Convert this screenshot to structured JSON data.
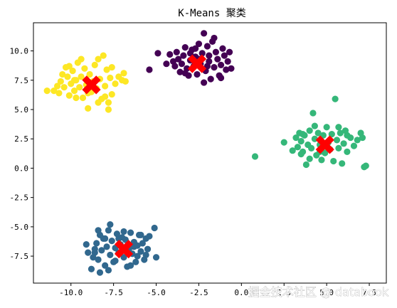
{
  "chart_data": {
    "type": "scatter",
    "title": "K-Means 聚类",
    "xlabel": "",
    "ylabel": "",
    "xlim": [
      -12.2,
      8.5
    ],
    "ylim": [
      -9.8,
      12.4
    ],
    "xticks": [
      -10.0,
      -7.5,
      -5.0,
      -2.5,
      0.0,
      2.5,
      5.0,
      7.5
    ],
    "xtick_labels": [
      "-10.0",
      "-7.5",
      "-5.0",
      "-2.5",
      "0.0",
      "2.5",
      "5.0",
      "7.5"
    ],
    "yticks": [
      -7.5,
      -5.0,
      -2.5,
      0.0,
      2.5,
      5.0,
      7.5,
      10.0
    ],
    "ytick_labels": [
      "-7.5",
      "-5.0",
      "-2.5",
      "0.0",
      "2.5",
      "5.0",
      "7.5",
      "10.0"
    ],
    "grid": false,
    "series": [
      {
        "color": "#440154",
        "points": [
          [
            -4.9,
            9.8
          ],
          [
            -5.4,
            8.4
          ],
          [
            -4.2,
            9.7
          ],
          [
            -4.0,
            9.1
          ],
          [
            -3.9,
            8.7
          ],
          [
            -3.7,
            9.3
          ],
          [
            -3.6,
            8.2
          ],
          [
            -3.5,
            8.9
          ],
          [
            -3.4,
            9.6
          ],
          [
            -3.3,
            10.3
          ],
          [
            -3.2,
            8.5
          ],
          [
            -3.1,
            7.9
          ],
          [
            -3.0,
            9.2
          ],
          [
            -2.9,
            10.1
          ],
          [
            -2.8,
            8.7
          ],
          [
            -2.7,
            9.5
          ],
          [
            -2.6,
            8.0
          ],
          [
            -2.5,
            10.6
          ],
          [
            -2.4,
            8.9
          ],
          [
            -2.3,
            9.8
          ],
          [
            -2.2,
            11.5
          ],
          [
            -2.1,
            8.3
          ],
          [
            -2.0,
            10.4
          ],
          [
            -1.9,
            9.1
          ],
          [
            -1.8,
            7.6
          ],
          [
            -1.7,
            10.8
          ],
          [
            -1.6,
            8.6
          ],
          [
            -1.5,
            9.9
          ],
          [
            -1.4,
            9.3
          ],
          [
            -1.3,
            7.9
          ],
          [
            -1.2,
            8.8
          ],
          [
            -1.1,
            10.2
          ],
          [
            -0.9,
            8.4
          ],
          [
            -0.8,
            9.1
          ],
          [
            -0.7,
            9.9
          ],
          [
            -3.8,
            9.9
          ],
          [
            -3.3,
            8.1
          ],
          [
            -2.7,
            10.2
          ],
          [
            -2.0,
            8.7
          ],
          [
            -1.6,
            11.1
          ],
          [
            -1.2,
            7.7
          ],
          [
            -0.6,
            8.5
          ],
          [
            -3.0,
            9.8
          ],
          [
            -2.5,
            9.3
          ],
          [
            -1.9,
            9.6
          ],
          [
            -4.4,
            8.9
          ],
          [
            -2.2,
            7.3
          ],
          [
            -1.0,
            9.6
          ]
        ]
      },
      {
        "color": "#31688e",
        "points": [
          [
            -8.6,
            -7.2
          ],
          [
            -8.5,
            -6.4
          ],
          [
            -8.4,
            -7.8
          ],
          [
            -8.3,
            -5.7
          ],
          [
            -8.2,
            -7.0
          ],
          [
            -8.1,
            -6.0
          ],
          [
            -8.0,
            -8.3
          ],
          [
            -7.9,
            -6.7
          ],
          [
            -7.8,
            -5.3
          ],
          [
            -7.7,
            -7.4
          ],
          [
            -7.6,
            -6.2
          ],
          [
            -7.5,
            -8.0
          ],
          [
            -7.4,
            -6.8
          ],
          [
            -7.3,
            -5.6
          ],
          [
            -7.2,
            -7.2
          ],
          [
            -7.1,
            -6.5
          ],
          [
            -7.0,
            -5.9
          ],
          [
            -6.9,
            -7.6
          ],
          [
            -6.8,
            -6.1
          ],
          [
            -6.7,
            -8.4
          ],
          [
            -6.6,
            -6.9
          ],
          [
            -6.5,
            -5.5
          ],
          [
            -6.4,
            -7.3
          ],
          [
            -6.3,
            -6.3
          ],
          [
            -6.2,
            -8.0
          ],
          [
            -6.1,
            -6.6
          ],
          [
            -6.0,
            -5.7
          ],
          [
            -5.9,
            -7.1
          ],
          [
            -5.8,
            -6.4
          ],
          [
            -5.7,
            -7.8
          ],
          [
            -5.6,
            -6.0
          ],
          [
            -5.5,
            -6.9
          ],
          [
            -5.4,
            -5.8
          ],
          [
            -5.1,
            -5.1
          ],
          [
            -5.0,
            -7.6
          ],
          [
            -7.7,
            -4.8
          ],
          [
            -8.3,
            -8.9
          ],
          [
            -8.6,
            -6.9
          ],
          [
            -8.7,
            -7.6
          ],
          [
            -8.8,
            -8.6
          ],
          [
            -8.4,
            -5.3
          ],
          [
            -7.8,
            -8.7
          ],
          [
            -7.2,
            -6.0
          ],
          [
            -6.9,
            -5.4
          ],
          [
            -6.5,
            -8.3
          ],
          [
            -6.3,
            -6.7
          ],
          [
            -5.9,
            -5.7
          ],
          [
            -5.6,
            -7.4
          ],
          [
            -6.1,
            -7.5
          ],
          [
            -7.4,
            -7.9
          ],
          [
            -8.0,
            -6.0
          ],
          [
            -9.0,
            -7.2
          ],
          [
            -9.1,
            -6.5
          ]
        ]
      },
      {
        "color": "#35b779",
        "points": [
          [
            0.8,
            1.0
          ],
          [
            2.5,
            2.2
          ],
          [
            3.0,
            1.5
          ],
          [
            3.2,
            2.6
          ],
          [
            3.3,
            1.8
          ],
          [
            3.4,
            3.0
          ],
          [
            3.5,
            2.3
          ],
          [
            3.6,
            1.4
          ],
          [
            3.7,
            2.8
          ],
          [
            3.8,
            0.3
          ],
          [
            3.9,
            2.0
          ],
          [
            4.0,
            3.2
          ],
          [
            4.1,
            1.7
          ],
          [
            4.2,
            4.7
          ],
          [
            4.3,
            2.5
          ],
          [
            4.4,
            1.1
          ],
          [
            4.5,
            3.0
          ],
          [
            4.6,
            2.0
          ],
          [
            4.7,
            0.7
          ],
          [
            4.8,
            2.8
          ],
          [
            4.9,
            1.3
          ],
          [
            5.0,
            3.5
          ],
          [
            5.1,
            2.2
          ],
          [
            5.2,
            1.6
          ],
          [
            5.3,
            2.9
          ],
          [
            5.4,
            0.6
          ],
          [
            5.5,
            5.9
          ],
          [
            5.6,
            2.4
          ],
          [
            5.7,
            1.7
          ],
          [
            5.8,
            3.0
          ],
          [
            5.9,
            0.4
          ],
          [
            6.0,
            2.1
          ],
          [
            6.1,
            3.2
          ],
          [
            6.2,
            1.4
          ],
          [
            6.4,
            2.6
          ],
          [
            6.6,
            1.9
          ],
          [
            6.8,
            2.4
          ],
          [
            7.0,
            3.0
          ],
          [
            7.1,
            2.6
          ],
          [
            7.2,
            0.1
          ],
          [
            7.3,
            0.2
          ],
          [
            4.3,
            3.6
          ],
          [
            4.0,
            0.8
          ],
          [
            3.6,
            2.9
          ],
          [
            5.7,
            3.5
          ],
          [
            6.2,
            2.8
          ],
          [
            3.5,
            1.2
          ],
          [
            4.6,
            1.4
          ]
        ]
      },
      {
        "color": "#fde725",
        "points": [
          [
            -11.0,
            6.6
          ],
          [
            -10.8,
            7.0
          ],
          [
            -10.7,
            6.4
          ],
          [
            -10.6,
            7.4
          ],
          [
            -10.5,
            8.0
          ],
          [
            -10.4,
            6.9
          ],
          [
            -10.3,
            8.6
          ],
          [
            -10.2,
            7.8
          ],
          [
            -10.1,
            6.2
          ],
          [
            -10.0,
            7.2
          ],
          [
            -9.9,
            8.3
          ],
          [
            -9.8,
            6.6
          ],
          [
            -9.7,
            7.5
          ],
          [
            -9.6,
            9.0
          ],
          [
            -9.5,
            6.9
          ],
          [
            -9.4,
            7.8
          ],
          [
            -9.3,
            6.0
          ],
          [
            -9.2,
            8.5
          ],
          [
            -9.1,
            7.1
          ],
          [
            -9.0,
            5.1
          ],
          [
            -8.9,
            8.0
          ],
          [
            -8.8,
            6.5
          ],
          [
            -8.7,
            7.4
          ],
          [
            -8.6,
            8.8
          ],
          [
            -8.5,
            6.8
          ],
          [
            -8.4,
            9.3
          ],
          [
            -8.3,
            7.6
          ],
          [
            -8.2,
            5.9
          ],
          [
            -8.1,
            9.6
          ],
          [
            -8.0,
            7.0
          ],
          [
            -7.9,
            8.4
          ],
          [
            -7.8,
            5.6
          ],
          [
            -7.7,
            7.7
          ],
          [
            -7.6,
            6.3
          ],
          [
            -7.4,
            7.2
          ],
          [
            -7.2,
            7.8
          ],
          [
            -7.0,
            7.5
          ],
          [
            -6.9,
            8.1
          ],
          [
            -6.8,
            7.4
          ],
          [
            -9.7,
            6.0
          ],
          [
            -10.1,
            8.7
          ],
          [
            -9.0,
            6.4
          ],
          [
            -8.0,
            6.1
          ],
          [
            -7.6,
            8.6
          ],
          [
            -11.4,
            6.6
          ],
          [
            -8.4,
            5.6
          ],
          [
            -7.8,
            5.0
          ],
          [
            -9.4,
            9.3
          ],
          [
            -9.8,
            7.5
          ]
        ]
      }
    ],
    "centroids": {
      "color": "#ff0000",
      "marker": "X",
      "points": [
        [
          -8.8,
          7.1
        ],
        [
          -2.6,
          8.9
        ],
        [
          4.9,
          2.0
        ],
        [
          -6.9,
          -6.9
        ]
      ]
    }
  },
  "watermark": "掘金技术社区 @ databook"
}
